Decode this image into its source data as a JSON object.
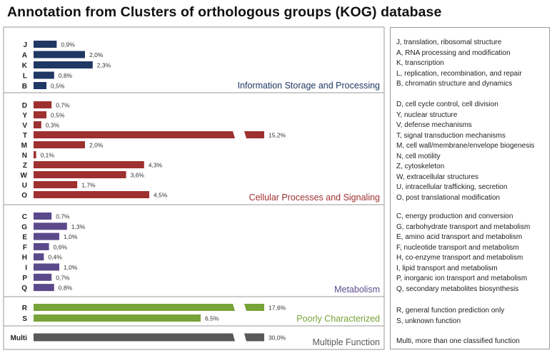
{
  "title": "Annotation from Clusters of orthologous groups (KOG) database",
  "chart_data": {
    "type": "bar",
    "orientation": "horizontal",
    "axis_break": true,
    "groups": [
      {
        "name": "Information Storage and Processing",
        "color": "#1f3864",
        "categories": [
          "J",
          "A",
          "K",
          "L",
          "B"
        ],
        "values": [
          0.9,
          2.0,
          2.3,
          0.8,
          0.5
        ],
        "value_labels": [
          "0,9%",
          "2,0%",
          "2,3%",
          "0,8%",
          "0,5%"
        ],
        "descriptions": [
          "J, translation, ribosomal structure",
          "A, RNA processing and modification",
          "K, transcription",
          "L, replication, recombination, and repair",
          "B, chromatin structure and dynamics"
        ]
      },
      {
        "name": "Cellular Processes and Signaling",
        "color": "#9e3030",
        "categories": [
          "D",
          "Y",
          "V",
          "T",
          "M",
          "N",
          "Z",
          "W",
          "U",
          "O"
        ],
        "values": [
          0.7,
          0.5,
          0.3,
          15.2,
          2.0,
          0.1,
          4.3,
          3.6,
          1.7,
          4.5
        ],
        "value_labels": [
          "0,7%",
          "0,5%",
          "0,3%",
          "15,2%",
          "2,0%",
          "0,1%",
          "4,3%",
          "3,6%",
          "1,7%",
          "4,5%"
        ],
        "descriptions": [
          "D, cell cycle control, cell division",
          "Y, nuclear structure",
          "V, defense mechanisms",
          "T, signal transduction mechanisms",
          "M, cell wall/membrane/envelope biogenesis",
          "N, cell motility",
          "Z, cytoskeleton",
          "W, extracellular structures",
          "U, intracellular trafficking, secretion",
          "O, post translational modification"
        ]
      },
      {
        "name": "Metabolism",
        "color": "#5b4a8b",
        "categories": [
          "C",
          "G",
          "E",
          "F",
          "H",
          "I",
          "P",
          "Q"
        ],
        "values": [
          0.7,
          1.3,
          1.0,
          0.6,
          0.4,
          1.0,
          0.7,
          0.8
        ],
        "value_labels": [
          "0,7%",
          "1,3%",
          "1,0%",
          "0,6%",
          "0,4%",
          "1,0%",
          "0,7%",
          "0,8%"
        ],
        "descriptions": [
          "C, energy production and conversion",
          "G, carbohydrate transport and metabolism",
          "E, amino acid transport and metabolism",
          "F, nucleotide transport and metabolism",
          "H, co-enzyme transport  and metabolism",
          "I, lipid transport  and metabolism",
          "P, inorganic ion transport and metabolism",
          "Q, secondary metabolites biosynthesis"
        ]
      },
      {
        "name": "Poorly Characterized",
        "color": "#77a338",
        "categories": [
          "R",
          "S"
        ],
        "values": [
          17.6,
          6.5
        ],
        "value_labels": [
          "17,6%",
          "6,5%"
        ],
        "descriptions": [
          "R, general function prediction only",
          "S, unknown function"
        ]
      },
      {
        "name": "Multiple Function",
        "color": "#595959",
        "categories": [
          "Multi"
        ],
        "values": [
          30.0
        ],
        "value_labels": [
          "30,0%"
        ],
        "descriptions": [
          "Multi, more than one classified function"
        ]
      }
    ]
  }
}
